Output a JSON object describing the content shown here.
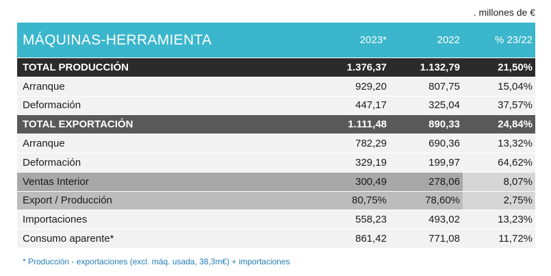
{
  "units_note": ". millones de €",
  "header": {
    "title": "MÁQUINAS-HERRAMIENTA",
    "col1": "2023*",
    "col2": "2022",
    "col3": "% 23/22"
  },
  "rows": [
    {
      "label": "TOTAL PRODUCCIÓN",
      "v2023": "1.376,37",
      "v2022": "1.132,79",
      "pct": "21,50%"
    },
    {
      "label": "Arranque",
      "v2023": "929,20",
      "v2022": "807,75",
      "pct": "15,04%"
    },
    {
      "label": "Deformación",
      "v2023": "447,17",
      "v2022": "325,04",
      "pct": "37,57%"
    },
    {
      "label": "TOTAL EXPORTACIÓN",
      "v2023": "1.111,48",
      "v2022": "890,33",
      "pct": "24,84%"
    },
    {
      "label": "Arranque",
      "v2023": "782,29",
      "v2022": "690,36",
      "pct": "13,32%"
    },
    {
      "label": "Deformación",
      "v2023": "329,19",
      "v2022": "199,97",
      "pct": "64,62%"
    },
    {
      "label": "Ventas Interior",
      "v2023": "300,49",
      "v2022": "278,06",
      "pct": "8,07%"
    },
    {
      "label": "Export / Producción",
      "v2023": "80,75%",
      "v2022": "78,60%",
      "pct": "2,75%"
    },
    {
      "label": "Importaciones",
      "v2023": "558,23",
      "v2022": "493,02",
      "pct": "13,23%"
    },
    {
      "label": "Consumo aparente*",
      "v2023": "861,42",
      "v2022": "771,08",
      "pct": "11,72%"
    }
  ],
  "footnote": "* Producción - exportaciones (excl. máq. usada, 38,3m€) + importaciones",
  "colors": {
    "header_bg": "#3bb6cc",
    "total_production_bg": "#2b2b2b",
    "total_export_bg": "#595959",
    "light_row_bg": "#f2f2f2",
    "gray_row_bg": "#a8a8a8",
    "footnote_text": "#1f7bb5"
  }
}
